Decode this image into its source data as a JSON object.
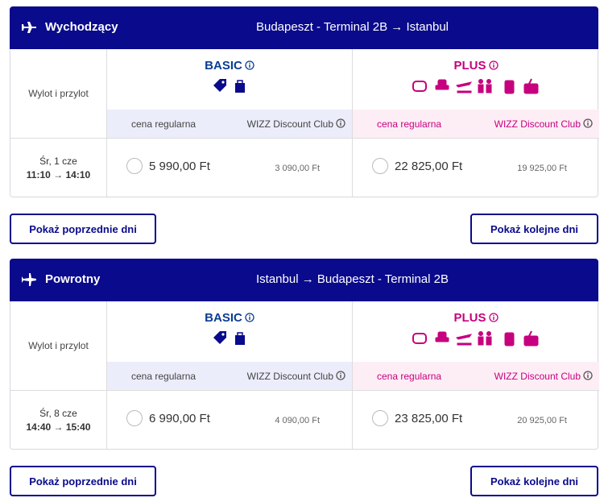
{
  "sections": [
    {
      "direction": "Wychodzący",
      "route": "Budapeszt - Terminal 2B → Istanbul",
      "time_label": "Wylot i przylot",
      "fares": [
        {
          "name": "BASIC",
          "regular": "cena regularna",
          "club": "WIZZ Discount Club"
        },
        {
          "name": "PLUS",
          "regular": "cena regularna",
          "club": "WIZZ Discount Club"
        }
      ],
      "flight": {
        "date": "Śr, 1 cze",
        "time": "11:10 → 14:10",
        "prices": [
          {
            "regular": "5 990,00 Ft",
            "club": "3 090,00 Ft"
          },
          {
            "regular": "22 825,00 Ft",
            "club": "19 925,00 Ft"
          }
        ]
      },
      "buttons": [
        "Pokaż poprzednie dni",
        "Pokaż kolejne dni"
      ]
    },
    {
      "direction": "Powrotny",
      "route": "Istanbul → Budapeszt - Terminal 2B",
      "time_label": "Wylot i przylot",
      "fares": [
        {
          "name": "BASIC",
          "regular": "cena regularna",
          "club": "WIZZ Discount Club"
        },
        {
          "name": "PLUS",
          "regular": "cena regularna",
          "club": "WIZZ Discount Club"
        }
      ],
      "flight": {
        "date": "Śr, 8 cze",
        "time": "14:40 → 15:40",
        "prices": [
          {
            "regular": "6 990,00 Ft",
            "club": "4 090,00 Ft"
          },
          {
            "regular": "23 825,00 Ft",
            "club": "20 925,00 Ft"
          }
        ]
      },
      "buttons": [
        "Pokaż poprzednie dni",
        "Pokaż kolejne dni"
      ]
    }
  ]
}
